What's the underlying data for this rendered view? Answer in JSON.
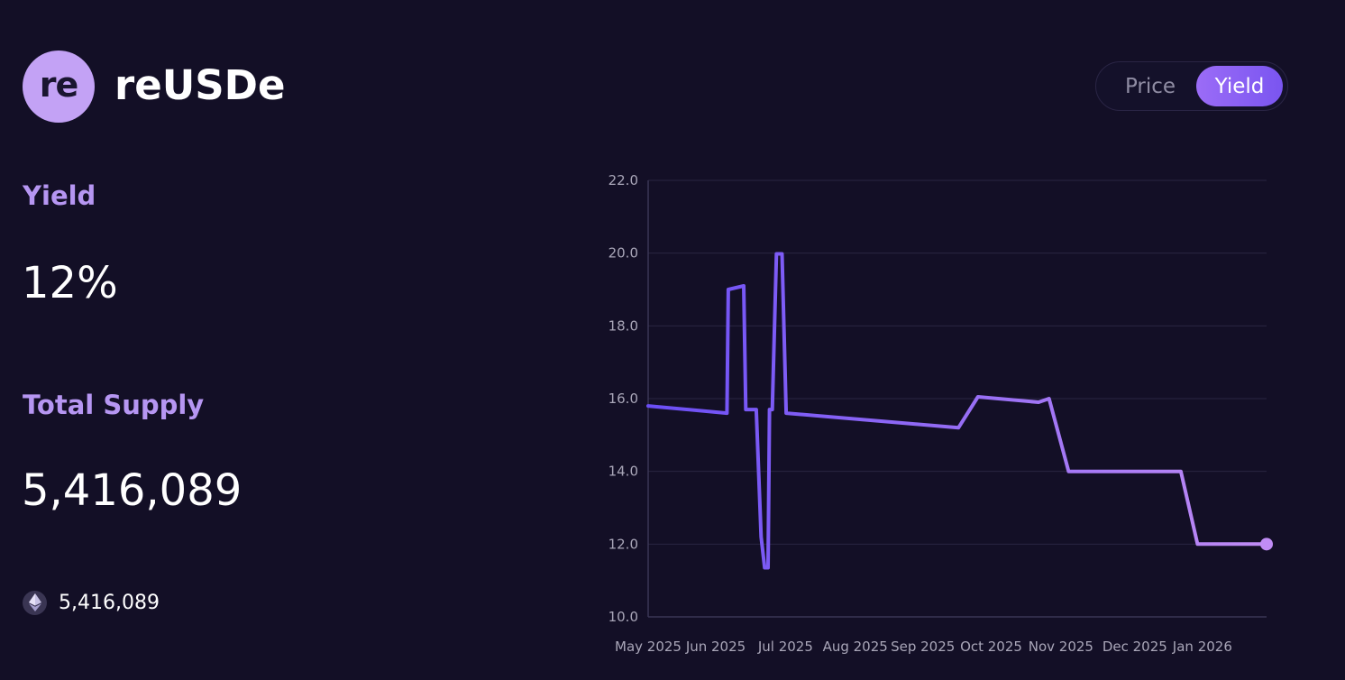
{
  "asset": {
    "logo_text": "re",
    "name": "reUSDe"
  },
  "toggle": {
    "options": [
      "Price",
      "Yield"
    ],
    "selected": "Yield"
  },
  "stats": {
    "yield_label": "Yield",
    "yield_value": "12%",
    "supply_label": "Total Supply",
    "supply_value": "5,416,089",
    "eth_supply": "5,416,089"
  },
  "icons": {
    "eth": "ethereum-icon"
  },
  "colors": {
    "background": "#130f26",
    "accent": "#b696f2",
    "line_start": "#6b4ef5",
    "line_end": "#c08cf5"
  },
  "chart_data": {
    "type": "line",
    "title": "",
    "xlabel": "",
    "ylabel": "",
    "ylim": [
      10,
      22
    ],
    "xlim": [
      0,
      8.87
    ],
    "yticks": [
      10.0,
      12.0,
      14.0,
      16.0,
      18.0,
      20.0,
      22.0
    ],
    "ytick_labels": [
      "10.0",
      "12.0",
      "14.0",
      "16.0",
      "18.0",
      "20.0",
      "22.0"
    ],
    "xticks": [
      0,
      0.97,
      1.97,
      2.97,
      3.94,
      4.92,
      5.92,
      6.98,
      7.95
    ],
    "xtick_labels": [
      "May 2025",
      "Jun 2025",
      "Jul 2025",
      "Aug 2025",
      "Sep 2025",
      "Oct 2025",
      "Nov 2025",
      "Dec 2025",
      "Jan 2026"
    ],
    "grid": true,
    "series": [
      {
        "name": "Yield",
        "x": [
          0,
          1.13,
          1.15,
          1.37,
          1.4,
          1.55,
          1.62,
          1.67,
          1.72,
          1.74,
          1.78,
          1.84,
          1.92,
          1.98,
          4.45,
          4.73,
          5.6,
          5.75,
          6.03,
          7.64,
          7.88,
          8.87
        ],
        "values": [
          15.8,
          15.6,
          19.0,
          19.1,
          15.7,
          15.7,
          12.2,
          11.35,
          11.35,
          15.7,
          15.7,
          19.98,
          19.98,
          15.6,
          15.2,
          16.05,
          15.9,
          16.0,
          14.0,
          14.0,
          12.0,
          12.0
        ]
      }
    ]
  }
}
